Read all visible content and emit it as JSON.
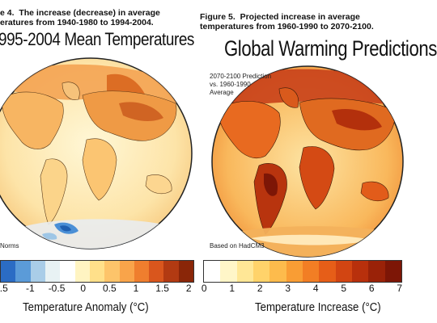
{
  "left": {
    "caption": "e 4.  The increase (decrease) in average\neratures from 1940-1980 to 1994-2004.",
    "title": "995-2004 Mean Temperatures",
    "inset_bottom": "Norms",
    "colorbar": {
      "ticks": [
        ".5",
        "-1",
        "-0.5",
        "0",
        "0.5",
        "1",
        "1.5",
        "2"
      ],
      "colors": [
        "#2b6cc4",
        "#5b9bd8",
        "#a9cde8",
        "#e8f2f4",
        "#ffffff",
        "#fff4c2",
        "#ffe08a",
        "#fdc46a",
        "#f9a44a",
        "#ef7e2e",
        "#d9561d",
        "#b23a12",
        "#8a2608"
      ]
    },
    "axis_label": "Temperature Anomaly (°C)"
  },
  "right": {
    "caption": "Figure 5.  Projected increase in average\ntemperatures from 1960-1990 to 2070-2100.",
    "title": "Global Warming Predictions",
    "inset_top": "2070-2100 Prediction\nvs. 1960-1990\nAverage",
    "inset_bottom": "Based on HadCM3",
    "colorbar": {
      "ticks": [
        "0",
        "1",
        "2",
        "3",
        "4",
        "5",
        "6",
        "7"
      ],
      "colors": [
        "#ffffff",
        "#fff6c8",
        "#ffe796",
        "#ffd36a",
        "#fdbb4c",
        "#f99d34",
        "#f27e24",
        "#e65e18",
        "#d24512",
        "#b8300c",
        "#9a2208",
        "#7d1606"
      ]
    },
    "axis_label": "Temperature Increase (°C)"
  }
}
